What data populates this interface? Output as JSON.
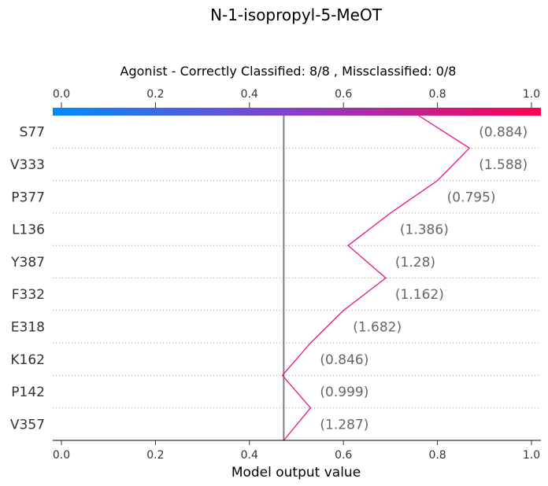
{
  "chart_data": {
    "type": "line",
    "title": "N-1-isopropyl-5-MeOT",
    "subtitle": "Agonist - Correctly Classified: 8/8 , Missclassified: 0/8",
    "xlabel": "Model output value",
    "xlim": [
      0.0,
      1.0
    ],
    "x_ticks": [
      "0.0",
      "0.2",
      "0.4",
      "0.6",
      "0.8",
      "1.0"
    ],
    "base_value": 0.473,
    "features": [
      {
        "name": "S77",
        "value": "(0.884)"
      },
      {
        "name": "V333",
        "value": "(1.588)"
      },
      {
        "name": "P377",
        "value": "(0.795)"
      },
      {
        "name": "L136",
        "value": "(1.386)"
      },
      {
        "name": "Y387",
        "value": "(1.28)"
      },
      {
        "name": "F332",
        "value": "(1.162)"
      },
      {
        "name": "E318",
        "value": "(1.682)"
      },
      {
        "name": "K162",
        "value": "(0.846)"
      },
      {
        "name": "P142",
        "value": "(0.999)"
      },
      {
        "name": "V357",
        "value": "(1.287)"
      }
    ],
    "path_x": [
      0.76,
      0.868,
      0.8,
      0.7,
      0.61,
      0.69,
      0.6,
      0.53,
      0.47,
      0.53,
      0.473
    ],
    "colorbar": {
      "from": "#008bfb",
      "mid": "#8a3ec8",
      "to": "#ff0051"
    },
    "line_color": "#e8128a"
  }
}
